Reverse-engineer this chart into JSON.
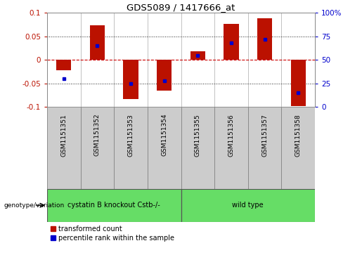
{
  "title": "GDS5089 / 1417666_at",
  "samples": [
    "GSM1151351",
    "GSM1151352",
    "GSM1151353",
    "GSM1151354",
    "GSM1151355",
    "GSM1151356",
    "GSM1151357",
    "GSM1151358"
  ],
  "transformed_count": [
    -0.022,
    0.073,
    -0.083,
    -0.065,
    0.018,
    0.077,
    0.088,
    -0.098
  ],
  "percentile_rank": [
    30,
    65,
    25,
    28,
    55,
    68,
    72,
    15
  ],
  "group1_label": "cystatin B knockout Cstb-/-",
  "group1_samples": [
    0,
    1,
    2,
    3
  ],
  "group2_label": "wild type",
  "group2_samples": [
    4,
    5,
    6,
    7
  ],
  "group_color": "#66dd66",
  "group_row_label": "genotype/variation",
  "ylim": [
    -0.1,
    0.1
  ],
  "yticks_left": [
    -0.1,
    -0.05,
    0,
    0.05,
    0.1
  ],
  "yticks_right": [
    0,
    25,
    50,
    75,
    100
  ],
  "bar_color": "#bb1100",
  "dot_color": "#0000cc",
  "zero_line_color": "#cc0000",
  "grid_dotted_color": "#222222",
  "cell_bg_color": "#cccccc",
  "plot_bg_color": "#ffffff",
  "legend_item1": "transformed count",
  "legend_item2": "percentile rank within the sample",
  "bar_width": 0.45
}
